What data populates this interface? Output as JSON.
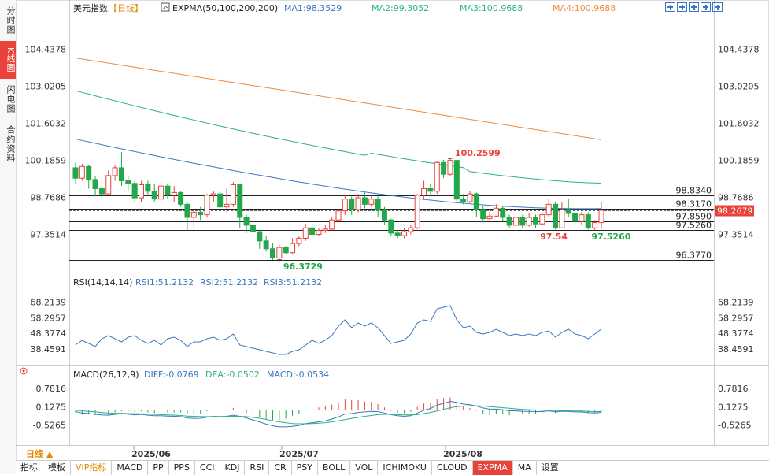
{
  "sidebar": {
    "tabs": [
      {
        "label": "分时图",
        "active": false
      },
      {
        "label": "K线图",
        "active": true
      },
      {
        "label": "闪电图",
        "active": false
      },
      {
        "label": "合约资料",
        "active": false
      }
    ]
  },
  "header": {
    "title": "美元指数",
    "period": "【日线】",
    "indicator": "EXPMA(50,100,200,200)",
    "ma1": "MA1:98.3529",
    "ma2": "MA2:99.3052",
    "ma3": "MA3:100.9688",
    "ma4": "MA4:100.9688"
  },
  "rsi_header": {
    "name": "RSI(14,14,14)",
    "rsi1": "RSI1:51.2132",
    "rsi2": "RSI2:51.2132",
    "rsi3": "RSI3:51.2132"
  },
  "macd_header": {
    "name": "MACD(26,12,9)",
    "diff": "DIFF:-0.0769",
    "dea": "DEA:-0.0502",
    "macd": "MACD:-0.0534"
  },
  "bottom_period": "日线 ▲",
  "toolbar": [
    "指标",
    "模板",
    "VIP指标",
    "MACD",
    "PP",
    "PPS",
    "CCI",
    "KDJ",
    "RSI",
    "CR",
    "PSY",
    "BOLL",
    "VOL",
    "ICHIMOKU",
    "CLOUD",
    "EXPMA",
    "MA",
    "设置"
  ],
  "colors": {
    "up": "#e9423a",
    "down": "#21a84a",
    "ma1": "#3a78c2",
    "ma2": "#2db08a",
    "ma3": "#f08a3c",
    "price_badge": "#e9423a"
  },
  "chart_data": {
    "type": "candlestick",
    "price_axis_ticks": [
      "104.4378",
      "103.0205",
      "101.6032",
      "100.1859",
      "98.7686",
      "97.3514"
    ],
    "price_ylim": [
      96.25,
      104.45
    ],
    "x_ticks": [
      "2025/06",
      "2025/07",
      "2025/08"
    ],
    "level_lines": [
      "98.8340",
      "98.3170",
      "97.8590",
      "97.5260",
      "96.3770"
    ],
    "current_price": "98.2679",
    "annotations": {
      "high": "100.2599",
      "low": "96.3729",
      "mark1": "97.54",
      "mark2": "97.5260"
    },
    "candles": [
      [
        99.9,
        99.5,
        100.1,
        99.3
      ],
      [
        99.5,
        99.95,
        100.05,
        99.4
      ],
      [
        99.95,
        99.45,
        100.0,
        99.1
      ],
      [
        99.45,
        99.1,
        99.6,
        98.8
      ],
      [
        99.1,
        98.9,
        99.5,
        98.6
      ],
      [
        98.9,
        99.6,
        99.8,
        98.85
      ],
      [
        99.6,
        99.9,
        100.0,
        99.4
      ],
      [
        99.9,
        99.4,
        100.5,
        99.2
      ],
      [
        99.4,
        99.3,
        99.6,
        99.0
      ],
      [
        99.3,
        98.75,
        99.4,
        98.6
      ],
      [
        98.75,
        99.25,
        99.4,
        98.6
      ],
      [
        99.25,
        99.0,
        99.4,
        98.8
      ],
      [
        99.0,
        98.7,
        99.3,
        98.6
      ],
      [
        98.7,
        99.2,
        99.3,
        98.6
      ],
      [
        99.2,
        98.85,
        99.3,
        98.7
      ],
      [
        98.85,
        98.95,
        99.2,
        98.6
      ],
      [
        98.95,
        98.5,
        99.0,
        98.4
      ],
      [
        98.5,
        98.0,
        98.6,
        97.5
      ],
      [
        98.0,
        98.2,
        98.3,
        97.6
      ],
      [
        98.2,
        98.1,
        98.4,
        97.9
      ],
      [
        98.1,
        98.85,
        98.9,
        98.0
      ],
      [
        98.85,
        98.9,
        99.0,
        98.6
      ],
      [
        98.9,
        98.4,
        99.0,
        98.3
      ],
      [
        98.4,
        98.5,
        99.1,
        98.2
      ],
      [
        98.5,
        99.25,
        99.35,
        98.4
      ],
      [
        99.25,
        98.0,
        99.3,
        97.6
      ],
      [
        98.0,
        97.7,
        98.1,
        97.4
      ],
      [
        97.7,
        97.45,
        97.8,
        97.3
      ],
      [
        97.45,
        97.1,
        97.5,
        96.8
      ],
      [
        97.1,
        96.8,
        97.3,
        96.7
      ],
      [
        96.8,
        96.45,
        97.0,
        96.37
      ],
      [
        96.45,
        96.85,
        96.95,
        96.3
      ],
      [
        96.85,
        96.65,
        96.9,
        96.6
      ],
      [
        96.65,
        97.0,
        97.2,
        96.6
      ],
      [
        97.0,
        97.2,
        97.3,
        96.9
      ],
      [
        97.2,
        97.6,
        97.75,
        97.1
      ],
      [
        97.6,
        97.35,
        97.65,
        97.2
      ],
      [
        97.35,
        97.5,
        97.6,
        97.3
      ],
      [
        97.5,
        97.55,
        97.7,
        97.4
      ],
      [
        97.55,
        97.9,
        98.0,
        97.5
      ],
      [
        97.9,
        98.25,
        98.3,
        97.8
      ],
      [
        98.25,
        98.7,
        98.85,
        98.1
      ],
      [
        98.7,
        98.3,
        98.8,
        98.1
      ],
      [
        98.3,
        98.75,
        98.9,
        98.2
      ],
      [
        98.75,
        98.5,
        98.95,
        98.35
      ],
      [
        98.5,
        98.7,
        98.85,
        98.4
      ],
      [
        98.7,
        98.3,
        98.8,
        98.0
      ],
      [
        98.3,
        97.9,
        98.4,
        97.7
      ],
      [
        97.9,
        97.4,
        97.95,
        97.3
      ],
      [
        97.4,
        97.3,
        97.5,
        97.2
      ],
      [
        97.3,
        97.45,
        97.6,
        97.2
      ],
      [
        97.45,
        97.6,
        97.7,
        97.35
      ],
      [
        97.6,
        98.85,
        98.9,
        97.55
      ],
      [
        98.85,
        99.1,
        99.4,
        98.7
      ],
      [
        99.1,
        99.0,
        99.3,
        98.8
      ],
      [
        99.0,
        100.1,
        100.15,
        98.9
      ],
      [
        100.1,
        99.65,
        100.2,
        99.5
      ],
      [
        99.65,
        100.18,
        100.26,
        99.6
      ],
      [
        100.18,
        98.7,
        100.2,
        98.6
      ],
      [
        98.7,
        98.6,
        98.9,
        98.5
      ],
      [
        98.6,
        98.9,
        99.0,
        98.55
      ],
      [
        98.9,
        98.3,
        98.95,
        98.0
      ],
      [
        98.3,
        97.95,
        98.45,
        97.8
      ],
      [
        97.95,
        98.05,
        98.2,
        97.9
      ],
      [
        98.05,
        98.35,
        98.5,
        98.0
      ],
      [
        98.35,
        98.0,
        98.45,
        97.85
      ],
      [
        98.0,
        97.7,
        98.1,
        97.6
      ],
      [
        97.7,
        98.0,
        98.1,
        97.6
      ],
      [
        98.0,
        97.7,
        98.1,
        97.6
      ],
      [
        97.7,
        98.0,
        98.15,
        97.65
      ],
      [
        98.0,
        97.75,
        98.1,
        97.6
      ],
      [
        97.75,
        98.1,
        98.2,
        97.7
      ],
      [
        98.1,
        98.5,
        98.7,
        98.0
      ],
      [
        98.5,
        97.6,
        98.6,
        97.54
      ],
      [
        97.6,
        98.3,
        98.6,
        97.6
      ],
      [
        98.3,
        98.15,
        98.7,
        98.0
      ],
      [
        98.15,
        97.85,
        98.35,
        97.7
      ],
      [
        97.85,
        98.1,
        98.2,
        97.7
      ],
      [
        98.1,
        97.6,
        98.2,
        97.53
      ],
      [
        97.6,
        97.8,
        97.9,
        97.5
      ],
      [
        97.8,
        98.27,
        98.6,
        97.55
      ]
    ],
    "ema_series": [
      {
        "name": "MA1",
        "start": 101.0,
        "end": 98.35
      },
      {
        "name": "MA2",
        "start": 102.85,
        "end": 99.31
      },
      {
        "name": "MA3",
        "start": 104.1,
        "end": 100.97
      }
    ],
    "rsi": {
      "axis_ticks": [
        "68.2139",
        "58.2957",
        "48.3774",
        "38.4591"
      ],
      "ylim": [
        30.0,
        70.0
      ],
      "values": [
        41,
        44,
        42,
        40,
        45,
        47,
        45,
        43,
        46,
        47,
        44,
        42,
        44,
        41,
        45,
        46,
        44,
        40,
        43,
        43,
        45,
        46,
        44,
        45,
        48,
        41,
        40,
        39,
        38,
        37,
        36,
        35,
        35,
        37,
        38,
        41,
        44,
        42,
        44,
        47,
        53,
        57,
        52,
        55,
        53,
        55,
        52,
        47,
        42,
        43,
        44,
        48,
        55,
        57,
        56,
        64,
        65,
        66,
        57,
        52,
        53,
        49,
        48,
        49,
        51,
        49,
        47,
        48,
        47,
        48,
        47,
        49,
        50,
        46,
        49,
        51,
        48,
        47,
        45,
        48,
        51.2
      ]
    },
    "macd": {
      "axis_ticks": [
        "0.7816",
        "0.1275",
        "-0.5265"
      ],
      "ylim": [
        -1.0,
        1.1
      ],
      "diff": [
        -0.05,
        -0.1,
        -0.12,
        -0.15,
        -0.17,
        -0.18,
        -0.15,
        -0.13,
        -0.14,
        -0.17,
        -0.15,
        -0.18,
        -0.2,
        -0.2,
        -0.21,
        -0.22,
        -0.23,
        -0.28,
        -0.3,
        -0.29,
        -0.25,
        -0.22,
        -0.23,
        -0.22,
        -0.18,
        -0.22,
        -0.28,
        -0.35,
        -0.42,
        -0.5,
        -0.56,
        -0.6,
        -0.6,
        -0.58,
        -0.55,
        -0.48,
        -0.45,
        -0.42,
        -0.38,
        -0.32,
        -0.24,
        -0.14,
        -0.12,
        -0.08,
        -0.06,
        -0.04,
        -0.05,
        -0.1,
        -0.16,
        -0.2,
        -0.22,
        -0.2,
        -0.1,
        0.0,
        0.06,
        0.18,
        0.25,
        0.32,
        0.28,
        0.22,
        0.2,
        0.15,
        0.08,
        0.04,
        0.04,
        0.02,
        -0.02,
        -0.02,
        -0.04,
        -0.04,
        -0.05,
        -0.05,
        -0.02,
        -0.06,
        -0.04,
        -0.04,
        -0.06,
        -0.06,
        -0.09,
        -0.1,
        -0.08
      ],
      "dea": [
        0.0,
        -0.02,
        -0.04,
        -0.06,
        -0.08,
        -0.1,
        -0.11,
        -0.11,
        -0.12,
        -0.13,
        -0.13,
        -0.14,
        -0.15,
        -0.16,
        -0.17,
        -0.18,
        -0.19,
        -0.21,
        -0.22,
        -0.23,
        -0.23,
        -0.23,
        -0.23,
        -0.23,
        -0.22,
        -0.22,
        -0.23,
        -0.26,
        -0.29,
        -0.33,
        -0.38,
        -0.42,
        -0.45,
        -0.48,
        -0.49,
        -0.49,
        -0.48,
        -0.47,
        -0.45,
        -0.42,
        -0.38,
        -0.34,
        -0.3,
        -0.26,
        -0.22,
        -0.19,
        -0.16,
        -0.15,
        -0.15,
        -0.16,
        -0.17,
        -0.17,
        -0.16,
        -0.12,
        -0.08,
        -0.03,
        0.03,
        0.09,
        0.13,
        0.15,
        0.16,
        0.16,
        0.15,
        0.13,
        0.11,
        0.09,
        0.07,
        0.05,
        0.03,
        0.02,
        0.01,
        0.0,
        0.0,
        -0.01,
        -0.02,
        -0.02,
        -0.03,
        -0.03,
        -0.04,
        -0.05,
        -0.05
      ]
    }
  }
}
